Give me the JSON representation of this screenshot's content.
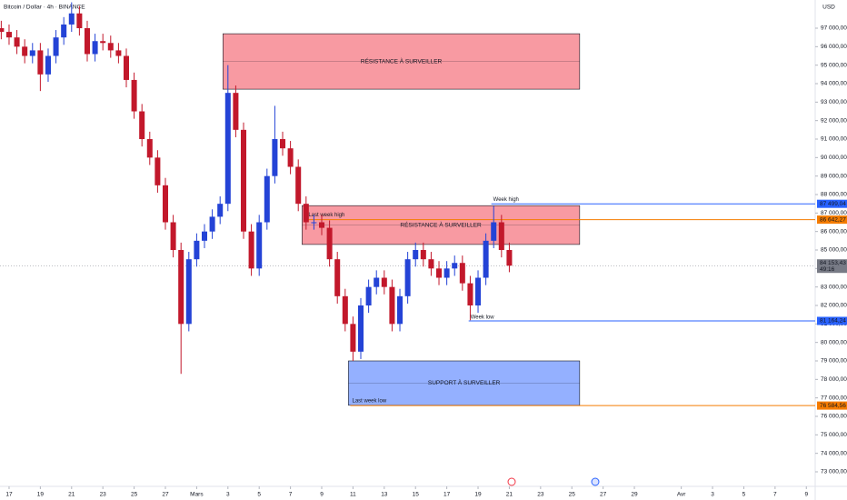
{
  "chart_data": {
    "type": "candlestick",
    "title": "Bitcoin / Dollar · 4h · BINANCE",
    "currency": "USD",
    "up_color": "#2443d6",
    "down_color": "#c2182b",
    "x": [
      -0.5,
      0,
      0.5,
      1,
      1.5,
      2,
      2.5,
      3,
      3.5,
      4,
      4.5,
      5,
      5.5,
      6,
      6.5,
      7,
      7.5,
      8,
      8.5,
      9,
      9.5,
      10,
      10.5,
      11,
      11.5,
      12,
      12.5,
      13,
      13.5,
      14,
      14.5,
      15,
      15.5,
      16,
      16.5,
      17,
      17.5,
      18,
      18.5,
      19,
      19.5,
      20,
      20.5,
      21,
      21.5,
      22,
      22.5,
      23,
      23.5,
      24,
      24.5,
      25,
      25.5,
      26,
      26.5,
      27,
      27.5,
      28,
      28.5,
      29,
      29.5,
      30,
      30.5,
      31,
      31.5,
      32
    ],
    "open": [
      97000,
      96800,
      96500,
      96000,
      95500,
      95800,
      94500,
      95500,
      96500,
      97200,
      97800,
      97000,
      95600,
      96300,
      96200,
      95800,
      95500,
      94200,
      92500,
      91000,
      90000,
      88500,
      86500,
      85000,
      81000,
      84500,
      85500,
      86000,
      86800,
      87500,
      93500,
      91500,
      86000,
      84000,
      86500,
      89000,
      91000,
      90500,
      89500,
      87500,
      86500,
      86500,
      86200,
      84500,
      82500,
      81000,
      79500,
      82000,
      83000,
      83500,
      83000,
      81000,
      82500,
      84500,
      85000,
      84500,
      84000,
      83500,
      84000,
      84300,
      83200,
      82000,
      83500,
      85500,
      86500,
      85000
    ],
    "high": [
      97400,
      97200,
      96900,
      96400,
      96200,
      96200,
      95900,
      96900,
      97600,
      98400,
      98200,
      97400,
      96700,
      96700,
      96600,
      96200,
      95900,
      94600,
      92900,
      91400,
      90400,
      88900,
      86900,
      85400,
      84900,
      85900,
      86400,
      87200,
      87900,
      95000,
      93900,
      91900,
      86400,
      86900,
      89400,
      92800,
      91400,
      90900,
      89900,
      87900,
      86900,
      86900,
      86600,
      84900,
      82900,
      81400,
      82400,
      83400,
      83900,
      83900,
      83400,
      82900,
      84900,
      85400,
      85400,
      84900,
      84400,
      84400,
      84700,
      84700,
      83600,
      83900,
      85900,
      87400,
      86900,
      85400
    ],
    "low": [
      96400,
      96100,
      95600,
      95100,
      95100,
      93600,
      94100,
      95100,
      96100,
      96800,
      96600,
      95200,
      95200,
      95800,
      95400,
      95100,
      93800,
      92100,
      90600,
      89600,
      88100,
      86100,
      84600,
      78300,
      80600,
      84100,
      85100,
      85600,
      86400,
      87100,
      91100,
      85600,
      83600,
      83600,
      86100,
      88600,
      90100,
      89100,
      87100,
      86100,
      86100,
      85800,
      84100,
      82100,
      80600,
      79000,
      79100,
      81600,
      82600,
      82600,
      80600,
      80600,
      82100,
      84100,
      84100,
      83600,
      83100,
      83100,
      83600,
      82800,
      81200,
      81600,
      83100,
      85100,
      84600,
      83800
    ],
    "close": [
      96800,
      96500,
      96000,
      95500,
      95800,
      94500,
      95500,
      96500,
      97200,
      97800,
      97000,
      95600,
      96300,
      96200,
      95800,
      95500,
      94200,
      92500,
      91000,
      90000,
      88500,
      86500,
      85000,
      81000,
      84500,
      85500,
      86000,
      86800,
      87500,
      93500,
      91500,
      86000,
      84000,
      86500,
      89000,
      91000,
      90500,
      89500,
      87500,
      86500,
      86500,
      86200,
      84500,
      82500,
      81000,
      79500,
      82000,
      83000,
      83500,
      83000,
      81000,
      82500,
      84500,
      85000,
      84500,
      84000,
      83500,
      84000,
      84300,
      83200,
      82000,
      83500,
      85500,
      86500,
      85000,
      84153.43
    ],
    "xlim": [
      -0.58,
      51.45
    ],
    "ylim": [
      72213,
      98525
    ],
    "xticks": [
      {
        "value": 0,
        "label": "17"
      },
      {
        "value": 2,
        "label": "19"
      },
      {
        "value": 4,
        "label": "21"
      },
      {
        "value": 6,
        "label": "23"
      },
      {
        "value": 8,
        "label": "25"
      },
      {
        "value": 10,
        "label": "27"
      },
      {
        "value": 12,
        "label": "Mars"
      },
      {
        "value": 14,
        "label": "3"
      },
      {
        "value": 16,
        "label": "5"
      },
      {
        "value": 18,
        "label": "7"
      },
      {
        "value": 20,
        "label": "9"
      },
      {
        "value": 22,
        "label": "11"
      },
      {
        "value": 24,
        "label": "13"
      },
      {
        "value": 26,
        "label": "15"
      },
      {
        "value": 28,
        "label": "17"
      },
      {
        "value": 30,
        "label": "19"
      },
      {
        "value": 32,
        "label": "21"
      },
      {
        "value": 34,
        "label": "23"
      },
      {
        "value": 36,
        "label": "25"
      },
      {
        "value": 38,
        "label": "27"
      },
      {
        "value": 40,
        "label": "29"
      },
      {
        "value": 43,
        "label": "Avr"
      },
      {
        "value": 45,
        "label": "3"
      },
      {
        "value": 47,
        "label": "5"
      },
      {
        "value": 49,
        "label": "7"
      },
      {
        "value": 51,
        "label": "9"
      }
    ],
    "yticks": [
      {
        "value": 73000,
        "label": "73 000,00"
      },
      {
        "value": 74000,
        "label": "74 000,00"
      },
      {
        "value": 75000,
        "label": "75 000,00"
      },
      {
        "value": 76000,
        "label": "76 000,00"
      },
      {
        "value": 77000,
        "label": "77 000,00"
      },
      {
        "value": 78000,
        "label": "78 000,00"
      },
      {
        "value": 79000,
        "label": "79 000,00"
      },
      {
        "value": 80000,
        "label": "80 000,00"
      },
      {
        "value": 81000,
        "label": "81 000,00"
      },
      {
        "value": 82000,
        "label": "82 000,00"
      },
      {
        "value": 83000,
        "label": "83 000,00"
      },
      {
        "value": 84000,
        "label": "84 000,00"
      },
      {
        "value": 85000,
        "label": "85 000,00"
      },
      {
        "value": 86000,
        "label": "86 000,00"
      },
      {
        "value": 87000,
        "label": "87 000,00"
      },
      {
        "value": 88000,
        "label": "88 000,00"
      },
      {
        "value": 89000,
        "label": "89 000,00"
      },
      {
        "value": 90000,
        "label": "90 000,00"
      },
      {
        "value": 91000,
        "label": "91 000,00"
      },
      {
        "value": 92000,
        "label": "92 000,00"
      },
      {
        "value": 93000,
        "label": "93 000,00"
      },
      {
        "value": 94000,
        "label": "94 000,00"
      },
      {
        "value": 95000,
        "label": "95 000,00"
      },
      {
        "value": 96000,
        "label": "96 000,00"
      },
      {
        "value": 97000,
        "label": "97 000,00"
      }
    ],
    "zones": [
      {
        "label": "RÉSISTANCE À SURVEILLER",
        "x": [
          13.68,
          36.5
        ],
        "y": [
          93700,
          96700
        ],
        "color": "#f23645"
      },
      {
        "label": "RÉSISTANCE À SURVEILLER",
        "x": [
          18.74,
          36.5
        ],
        "y": [
          85300,
          87400
        ],
        "color": "#f23645"
      },
      {
        "label": "SUPPORT À SURVEILLER",
        "x": [
          21.71,
          36.5
        ],
        "y": [
          76600,
          79000
        ],
        "color": "#2962ff"
      }
    ],
    "levels": [
      {
        "name": "Week high",
        "x": 30.85,
        "value": 87499.04,
        "label": "87 499,04",
        "color": "#2962ff"
      },
      {
        "name": "Last week high",
        "x": 19.03,
        "value": 86642.27,
        "label": "86 642,27",
        "color": "#f57c00"
      },
      {
        "name": "Week low",
        "x": 29.4,
        "value": 81164.24,
        "label": "81 164,24",
        "color": "#2962ff"
      },
      {
        "name": "Last week low",
        "x": 21.83,
        "value": 76584.56,
        "label": "76 584,56",
        "color": "#f57c00"
      }
    ],
    "last_price": {
      "value": 84153.43,
      "label": "84 153,43",
      "countdown": "49:16",
      "color": "#787b86"
    }
  }
}
